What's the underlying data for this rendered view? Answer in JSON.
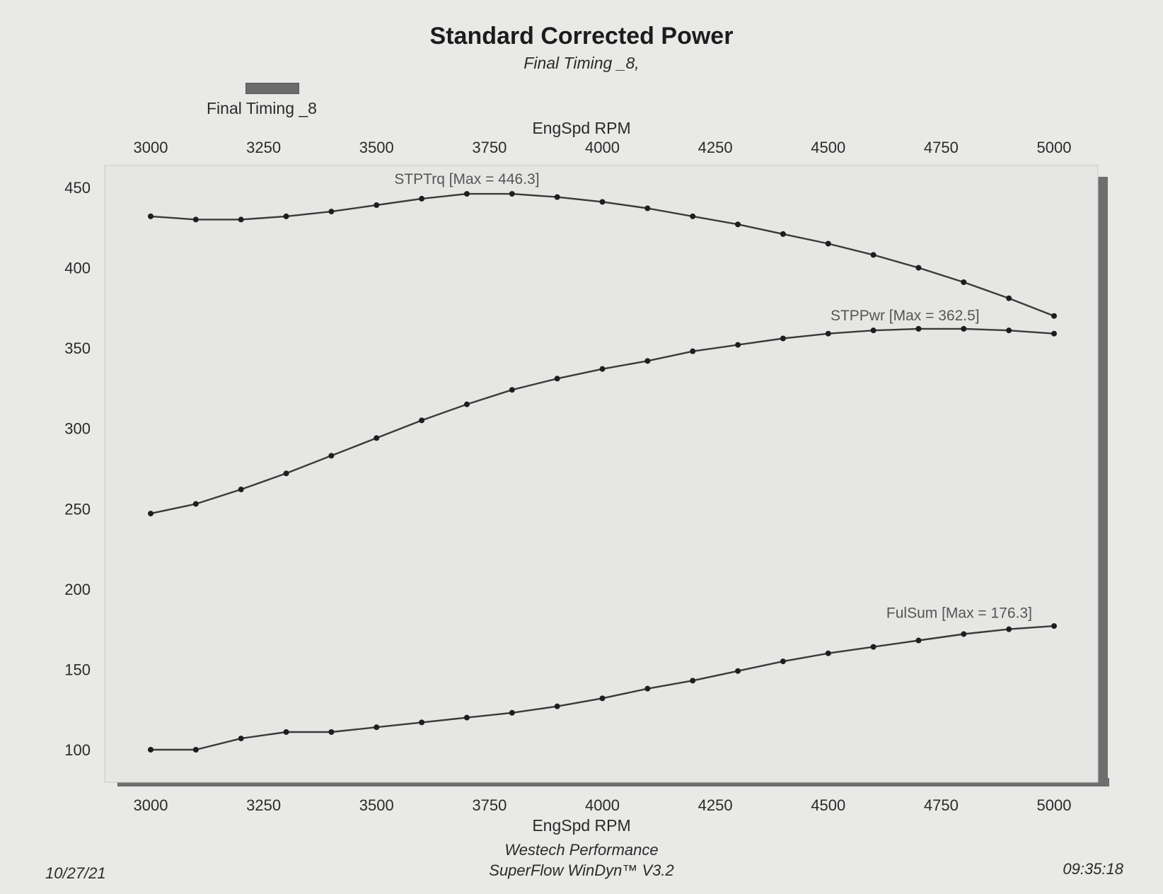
{
  "header": {
    "title": "Standard Corrected Power",
    "subtitle": "Final Timing _8,"
  },
  "legend": {
    "label": "Final Timing _8",
    "swatch_color": "#6b6b6b"
  },
  "footer": {
    "company": "Westech Performance",
    "software": "SuperFlow WinDyn™ V3.2",
    "date": "10/27/21",
    "time": "09:35:18"
  },
  "chart_data": {
    "type": "line",
    "title": "Standard Corrected Power",
    "subtitle": "Final Timing _8,",
    "xlabel": "EngSpd RPM",
    "ylabel": "",
    "xlim": [
      3000,
      5000
    ],
    "ylim": [
      85,
      460
    ],
    "x_ticks": [
      3000,
      3250,
      3500,
      3750,
      4000,
      4250,
      4500,
      4750,
      5000
    ],
    "y_ticks": [
      100,
      150,
      200,
      250,
      300,
      350,
      400,
      450
    ],
    "grid": false,
    "legend": "top-left",
    "x": [
      3000,
      3100,
      3200,
      3300,
      3400,
      3500,
      3600,
      3700,
      3800,
      3900,
      4000,
      4100,
      4200,
      4300,
      4400,
      4500,
      4600,
      4700,
      4800,
      4900,
      5000
    ],
    "series": [
      {
        "name": "STPTrq",
        "label": "STPTrq [Max = 446.3]",
        "values": [
          432,
          430,
          430,
          432,
          435,
          439,
          443,
          446,
          446,
          444,
          441,
          437,
          432,
          427,
          421,
          415,
          408,
          400,
          391,
          381,
          370
        ]
      },
      {
        "name": "STPPwr",
        "label": "STPPwr [Max = 362.5]",
        "values": [
          247,
          253,
          262,
          272,
          283,
          294,
          305,
          315,
          324,
          331,
          337,
          342,
          348,
          352,
          356,
          359,
          361,
          362,
          362,
          361,
          359
        ]
      },
      {
        "name": "FulSum",
        "label": "FulSum [Max = 176.3]",
        "values": [
          100,
          100,
          107,
          111,
          111,
          114,
          117,
          120,
          123,
          127,
          132,
          138,
          143,
          149,
          155,
          160,
          164,
          168,
          172,
          175,
          177
        ]
      }
    ]
  }
}
